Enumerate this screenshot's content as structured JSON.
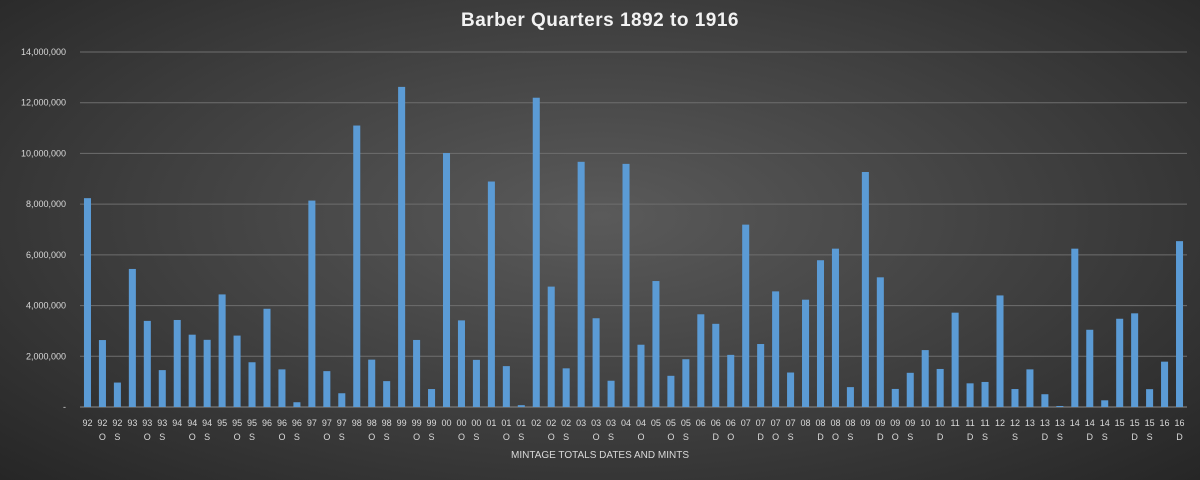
{
  "chart_data": {
    "type": "bar",
    "title": "Barber  Quarters  1892 to 1916",
    "xlabel": "MINTAGE TOTALS DATES AND MINTS",
    "ylabel": "",
    "ylim": [
      0,
      14000000
    ],
    "yticks": [
      0,
      2000000,
      4000000,
      6000000,
      8000000,
      10000000,
      12000000,
      14000000
    ],
    "ytick_labels": [
      "-",
      "2,000,000",
      "4,000,000",
      "6,000,000",
      "8,000,000",
      "10,000,000",
      "12,000,000",
      "14,000,000"
    ],
    "grid": true,
    "legend": "none",
    "bar_color": "#5b9bd5",
    "categories": [
      {
        "year": "92",
        "mint": ""
      },
      {
        "year": "92",
        "mint": "O"
      },
      {
        "year": "92",
        "mint": "S"
      },
      {
        "year": "93",
        "mint": ""
      },
      {
        "year": "93",
        "mint": "O"
      },
      {
        "year": "93",
        "mint": "S"
      },
      {
        "year": "94",
        "mint": ""
      },
      {
        "year": "94",
        "mint": "O"
      },
      {
        "year": "94",
        "mint": "S"
      },
      {
        "year": "95",
        "mint": ""
      },
      {
        "year": "95",
        "mint": "O"
      },
      {
        "year": "95",
        "mint": "S"
      },
      {
        "year": "96",
        "mint": ""
      },
      {
        "year": "96",
        "mint": "O"
      },
      {
        "year": "96",
        "mint": "S"
      },
      {
        "year": "97",
        "mint": ""
      },
      {
        "year": "97",
        "mint": "O"
      },
      {
        "year": "97",
        "mint": "S"
      },
      {
        "year": "98",
        "mint": ""
      },
      {
        "year": "98",
        "mint": "O"
      },
      {
        "year": "98",
        "mint": "S"
      },
      {
        "year": "99",
        "mint": ""
      },
      {
        "year": "99",
        "mint": "O"
      },
      {
        "year": "99",
        "mint": "S"
      },
      {
        "year": "00",
        "mint": ""
      },
      {
        "year": "00",
        "mint": "O"
      },
      {
        "year": "00",
        "mint": "S"
      },
      {
        "year": "01",
        "mint": ""
      },
      {
        "year": "01",
        "mint": "O"
      },
      {
        "year": "01",
        "mint": "S"
      },
      {
        "year": "02",
        "mint": ""
      },
      {
        "year": "02",
        "mint": "O"
      },
      {
        "year": "02",
        "mint": "S"
      },
      {
        "year": "03",
        "mint": ""
      },
      {
        "year": "03",
        "mint": "O"
      },
      {
        "year": "03",
        "mint": "S"
      },
      {
        "year": "04",
        "mint": ""
      },
      {
        "year": "04",
        "mint": "O"
      },
      {
        "year": "05",
        "mint": ""
      },
      {
        "year": "05",
        "mint": "O"
      },
      {
        "year": "05",
        "mint": "S"
      },
      {
        "year": "06",
        "mint": ""
      },
      {
        "year": "06",
        "mint": "D"
      },
      {
        "year": "06",
        "mint": "O"
      },
      {
        "year": "07",
        "mint": ""
      },
      {
        "year": "07",
        "mint": "D"
      },
      {
        "year": "07",
        "mint": "O"
      },
      {
        "year": "07",
        "mint": "S"
      },
      {
        "year": "08",
        "mint": ""
      },
      {
        "year": "08",
        "mint": "D"
      },
      {
        "year": "08",
        "mint": "O"
      },
      {
        "year": "08",
        "mint": "S"
      },
      {
        "year": "09",
        "mint": ""
      },
      {
        "year": "09",
        "mint": "D"
      },
      {
        "year": "09",
        "mint": "O"
      },
      {
        "year": "09",
        "mint": "S"
      },
      {
        "year": "10",
        "mint": ""
      },
      {
        "year": "10",
        "mint": "D"
      },
      {
        "year": "11",
        "mint": ""
      },
      {
        "year": "11",
        "mint": "D"
      },
      {
        "year": "11",
        "mint": "S"
      },
      {
        "year": "12",
        "mint": ""
      },
      {
        "year": "12",
        "mint": "S"
      },
      {
        "year": "13",
        "mint": ""
      },
      {
        "year": "13",
        "mint": "D"
      },
      {
        "year": "13",
        "mint": "S"
      },
      {
        "year": "14",
        "mint": ""
      },
      {
        "year": "14",
        "mint": "D"
      },
      {
        "year": "14",
        "mint": "S"
      },
      {
        "year": "15",
        "mint": ""
      },
      {
        "year": "15",
        "mint": "D"
      },
      {
        "year": "15",
        "mint": "S"
      },
      {
        "year": "16",
        "mint": ""
      },
      {
        "year": "16",
        "mint": "D"
      }
    ],
    "values": [
      8236000,
      2640000,
      964079,
      5444023,
      3396000,
      1454535,
      3432000,
      2852000,
      2648821,
      4440000,
      2816000,
      1764681,
      3874000,
      1484000,
      188039,
      8140000,
      1414800,
      542229,
      11100000,
      1868000,
      1020592,
      12624000,
      2644000,
      708000,
      10016000,
      3416000,
      1858585,
      8892000,
      1612000,
      72664,
      12196967,
      4748000,
      1524612,
      9669309,
      3500000,
      1036000,
      9588143,
      2456000,
      4967523,
      1230000,
      1884000,
      3656435,
      3280000,
      2056000,
      7192000,
      2484000,
      4560000,
      1360000,
      4232000,
      5788000,
      6244700,
      784000,
      9268000,
      5114000,
      712000,
      1348000,
      2244551,
      1500000,
      3720000,
      933600,
      988000,
      4400000,
      708000,
      1484000,
      504000,
      40000,
      6244230,
      3046000,
      264000,
      3480000,
      3694000,
      704000,
      1788000,
      6540800
    ]
  }
}
